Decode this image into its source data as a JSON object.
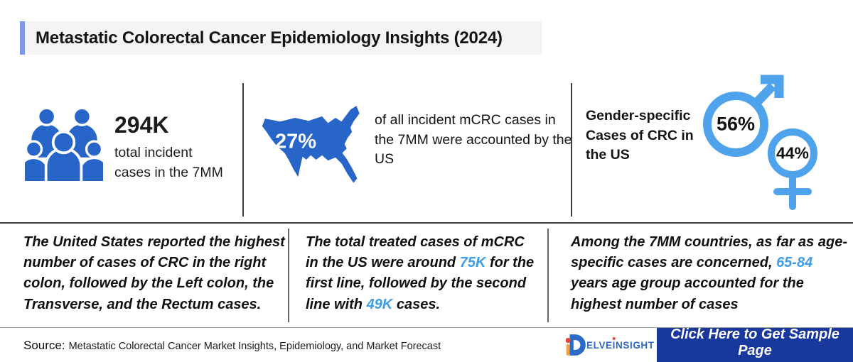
{
  "title": "Metastatic Colorectal Cancer Epidemiology Insights (2024)",
  "colors": {
    "royal_blue": "#2765c8",
    "sky_blue": "#4ea3ec",
    "accent_text_blue": "#3e9ee8",
    "button_blue": "#18389e",
    "title_accent": "#7e98ea",
    "logo_blue": "#2b6ac8",
    "logo_red_dot": "#e2483d",
    "logo_orange": "#f2a33c"
  },
  "icons": [
    "people-group-icon",
    "usa-map-icon",
    "male-symbol-icon",
    "female-symbol-icon",
    "delveinsight-logo-d-icon"
  ],
  "top_row": {
    "incidence": {
      "value": "294K",
      "label": "total incident\ncases in the 7MM"
    },
    "us_share": {
      "value": "27%",
      "text": "of all incident mCRC cases in the 7MM were accounted by the US"
    },
    "gender": {
      "heading": "Gender-specific Cases of CRC in the US",
      "male_value": "56%",
      "female_value": "44%"
    }
  },
  "highlights": [
    {
      "parts": [
        {
          "text": "The United States reported the highest number of cases of CRC in the right colon, followed by the Left colon, the Transverse, and the Rectum cases.",
          "accent": false
        }
      ]
    },
    {
      "parts": [
        {
          "text": "The total treated cases of mCRC in the US were around ",
          "accent": false
        },
        {
          "text": "75K",
          "accent": true
        },
        {
          "text": " for the first line, followed by the second line with ",
          "accent": false
        },
        {
          "text": "49K",
          "accent": true
        },
        {
          "text": " cases.",
          "accent": false
        }
      ]
    },
    {
      "parts": [
        {
          "text": "Among the 7MM countries, as far as age-specific cases are concerned, ",
          "accent": false
        },
        {
          "text": "65-84",
          "accent": true
        },
        {
          "text": " years age group accounted for the highest number of cases",
          "accent": false
        }
      ]
    }
  ],
  "footer": {
    "source_label": "Source:",
    "source_text": "Metastatic Colorectal Cancer Market Insights, Epidemiology, and Market Forecast",
    "logo": {
      "d": "D",
      "part1": "ELVE",
      "dotted_i": "I",
      "part2": "NSIGHT"
    },
    "cta_label": "Click Here to Get Sample Page"
  }
}
